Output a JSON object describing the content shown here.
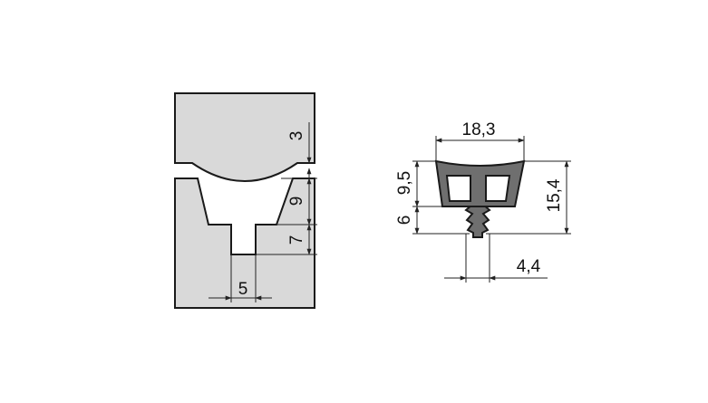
{
  "colors": {
    "frame_fill": "#d9d9d9",
    "profile_fill": "#6f6f6f",
    "outline": "#1a1a1a",
    "dimension_line": "#222222",
    "background": "#ffffff"
  },
  "groove_section": {
    "dimensions": {
      "gap": "3",
      "groove_upper_depth": "9",
      "groove_lower_depth": "7",
      "slot_width": "5"
    }
  },
  "seal_profile": {
    "dimensions": {
      "width": "18,3",
      "upper_height": "9,5",
      "lower_height": "6",
      "total_height": "15,4",
      "fin_width": "4,4"
    }
  }
}
